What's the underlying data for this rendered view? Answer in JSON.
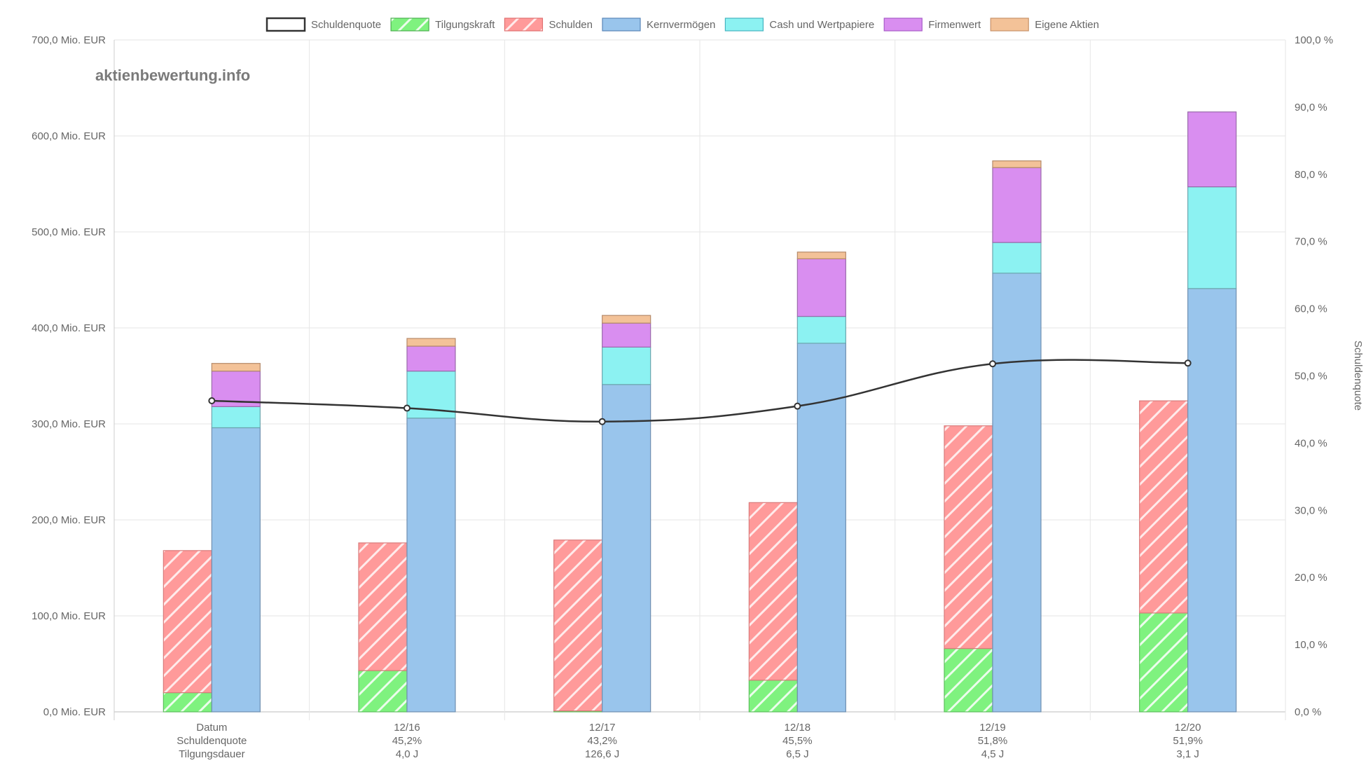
{
  "watermark": "aktienbewertung.info",
  "chart_data": {
    "type": "bar",
    "title": "",
    "legend_position": "top-center",
    "legend": [
      {
        "key": "schuldenquote",
        "label": "Schuldenquote",
        "color": "#ffffff",
        "border": "#333333",
        "hatched": false
      },
      {
        "key": "tilgungskraft",
        "label": "Tilgungskraft",
        "color": "#80f080",
        "border": "#4caf50",
        "hatched": true
      },
      {
        "key": "schulden",
        "label": "Schulden",
        "color": "#ff9a9a",
        "border": "#e07070",
        "hatched": true
      },
      {
        "key": "kernvermoegen",
        "label": "Kernvermögen",
        "color": "#99c5ec",
        "border": "#5a86b8",
        "hatched": false
      },
      {
        "key": "cash",
        "label": "Cash und Wertpapiere",
        "color": "#8cf2f2",
        "border": "#45b3c0",
        "hatched": false
      },
      {
        "key": "firmenwert",
        "label": "Firmenwert",
        "color": "#d98ef0",
        "border": "#a85cc9",
        "hatched": false
      },
      {
        "key": "eigene",
        "label": "Eigene Aktien",
        "color": "#f3c298",
        "border": "#c8926a",
        "hatched": false
      }
    ],
    "y_left": {
      "min": 0,
      "max": 700,
      "step": 100,
      "tick_labels": [
        "0,0 Mio. EUR",
        "100,0 Mio. EUR",
        "200,0 Mio. EUR",
        "300,0 Mio. EUR",
        "400,0 Mio. EUR",
        "500,0 Mio. EUR",
        "600,0 Mio. EUR",
        "700,0 Mio. EUR"
      ]
    },
    "y_right": {
      "min": 0,
      "max": 100,
      "step": 10,
      "label": "Schuldenquote",
      "tick_labels": [
        "0,0 %",
        "10,0 %",
        "20,0 %",
        "30,0 %",
        "40,0 %",
        "50,0 %",
        "60,0 %",
        "70,0 %",
        "80,0 %",
        "90,0 %",
        "100,0 %"
      ]
    },
    "categories": [
      {
        "line1": "Datum",
        "line2": "Schuldenquote",
        "line3": "Tilgungsdauer"
      },
      {
        "line1": "12/16",
        "line2": "45,2%",
        "line3": "4,0 J"
      },
      {
        "line1": "12/17",
        "line2": "43,2%",
        "line3": "126,6 J"
      },
      {
        "line1": "12/18",
        "line2": "45,5%",
        "line3": "6,5 J"
      },
      {
        "line1": "12/19",
        "line2": "51,8%",
        "line3": "4,5 J"
      },
      {
        "line1": "12/20",
        "line2": "51,9%",
        "line3": "3,1 J"
      }
    ],
    "series": [
      {
        "name": "Tilgungskraft",
        "stack": "debt",
        "values": [
          20,
          43,
          1,
          33,
          66,
          103
        ]
      },
      {
        "name": "Schulden",
        "stack": "debt",
        "values": [
          148,
          133,
          178,
          185,
          232,
          221
        ]
      },
      {
        "name": "Kernvermögen",
        "stack": "assets",
        "values": [
          296,
          306,
          341,
          384,
          457,
          441
        ]
      },
      {
        "name": "Cash und Wertpapiere",
        "stack": "assets",
        "values": [
          22,
          49,
          39,
          28,
          32,
          106
        ]
      },
      {
        "name": "Firmenwert",
        "stack": "assets",
        "values": [
          37,
          26,
          25,
          60,
          78,
          78
        ]
      },
      {
        "name": "Eigene Aktien",
        "stack": "assets",
        "values": [
          8,
          8,
          8,
          7,
          7,
          0
        ]
      }
    ],
    "line": {
      "name": "Schuldenquote",
      "axis": "right",
      "values": [
        46.3,
        45.2,
        43.2,
        45.5,
        51.8,
        51.9
      ]
    }
  }
}
